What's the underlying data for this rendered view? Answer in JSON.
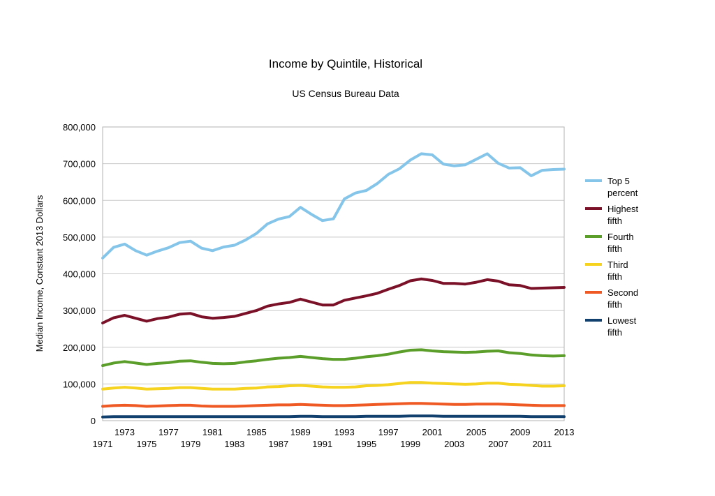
{
  "chart_data": {
    "type": "line",
    "title": "Income by Quintile, Historical",
    "subtitle": "US Census Bureau Data",
    "xlabel": "",
    "ylabel": "Median Income, Constant 2013 Dollars",
    "ylim": [
      0,
      800000
    ],
    "yticks": [
      0,
      100000,
      200000,
      300000,
      400000,
      500000,
      600000,
      700000,
      800000
    ],
    "ytick_labels": [
      "0",
      "100,000",
      "200,000",
      "300,000",
      "400,000",
      "500,000",
      "600,000",
      "700,000",
      "800,000"
    ],
    "xlim": [
      1971,
      2013
    ],
    "xticks_lower": [
      "1971",
      "1975",
      "1979",
      "1983",
      "1987",
      "1991",
      "1995",
      "1999",
      "2003",
      "2007",
      "2011"
    ],
    "xticks_upper": [
      "1973",
      "1977",
      "1981",
      "1985",
      "1989",
      "1993",
      "1997",
      "2001",
      "2005",
      "2009",
      "2013"
    ],
    "grid": "horizontal",
    "legend_position": "right",
    "x": [
      1971,
      1972,
      1973,
      1974,
      1975,
      1976,
      1977,
      1978,
      1979,
      1980,
      1981,
      1982,
      1983,
      1984,
      1985,
      1986,
      1987,
      1988,
      1989,
      1990,
      1991,
      1992,
      1993,
      1994,
      1995,
      1996,
      1997,
      1998,
      1999,
      2000,
      2001,
      2002,
      2003,
      2004,
      2005,
      2006,
      2007,
      2008,
      2009,
      2010,
      2011,
      2012,
      2013
    ],
    "series": [
      {
        "name": "Top 5 percent",
        "color": "#85c5ea",
        "values": [
          443000,
          472000,
          481000,
          463000,
          451000,
          462000,
          471000,
          485000,
          489000,
          470000,
          463000,
          473000,
          478000,
          492000,
          510000,
          536000,
          549000,
          556000,
          581000,
          562000,
          545000,
          550000,
          604000,
          620000,
          627000,
          646000,
          671000,
          686000,
          710000,
          727000,
          724000,
          699000,
          694000,
          697000,
          712000,
          727000,
          701000,
          688000,
          689000,
          667000,
          682000,
          684000,
          685000
        ]
      },
      {
        "name": "Highest fifth",
        "color": "#7a1128",
        "values": [
          266000,
          280000,
          287000,
          279000,
          271000,
          278000,
          282000,
          290000,
          292000,
          283000,
          279000,
          281000,
          284000,
          292000,
          300000,
          312000,
          318000,
          322000,
          331000,
          323000,
          315000,
          315000,
          328000,
          334000,
          340000,
          347000,
          358000,
          368000,
          381000,
          386000,
          382000,
          374000,
          374000,
          372000,
          377000,
          384000,
          380000,
          370000,
          368000,
          360000,
          361000,
          362000,
          363000
        ]
      },
      {
        "name": "Fourth fifth",
        "color": "#5c9e2a",
        "values": [
          150000,
          157000,
          161000,
          157000,
          153000,
          156000,
          158000,
          162000,
          163000,
          159000,
          156000,
          155000,
          156000,
          160000,
          163000,
          167000,
          170000,
          172000,
          175000,
          172000,
          169000,
          167000,
          167000,
          170000,
          174000,
          177000,
          181000,
          187000,
          192000,
          193000,
          190000,
          188000,
          187000,
          186000,
          187000,
          189000,
          190000,
          185000,
          183000,
          179000,
          177000,
          176000,
          177000
        ]
      },
      {
        "name": "Third fifth",
        "color": "#f5d31e",
        "values": [
          86000,
          89000,
          91000,
          89000,
          86000,
          87000,
          88000,
          90000,
          90000,
          88000,
          86000,
          86000,
          86000,
          88000,
          89000,
          92000,
          93000,
          95000,
          96000,
          94000,
          92000,
          91000,
          91000,
          92000,
          95000,
          96000,
          98000,
          101000,
          104000,
          104000,
          102000,
          101000,
          100000,
          99000,
          100000,
          102000,
          102000,
          99000,
          98000,
          96000,
          94000,
          94000,
          95000
        ]
      },
      {
        "name": "Second fifth",
        "color": "#ef5a24",
        "values": [
          39000,
          41000,
          42000,
          41000,
          39000,
          40000,
          41000,
          42000,
          42000,
          40000,
          39000,
          39000,
          39000,
          40000,
          41000,
          42000,
          43000,
          43000,
          44000,
          43000,
          42000,
          41000,
          41000,
          42000,
          43000,
          44000,
          45000,
          46000,
          47000,
          47000,
          46000,
          45000,
          44000,
          44000,
          45000,
          45000,
          45000,
          44000,
          43000,
          42000,
          41000,
          41000,
          41000
        ]
      },
      {
        "name": "Lowest fifth",
        "color": "#12406e",
        "values": [
          10000,
          11000,
          11000,
          11000,
          11000,
          11000,
          11000,
          11000,
          11000,
          11000,
          11000,
          11000,
          11000,
          11000,
          11000,
          11000,
          11000,
          11000,
          12000,
          12000,
          11000,
          11000,
          11000,
          11000,
          12000,
          12000,
          12000,
          12000,
          13000,
          13000,
          13000,
          12000,
          12000,
          12000,
          12000,
          12000,
          12000,
          12000,
          12000,
          11000,
          11000,
          11000,
          11000
        ]
      }
    ],
    "legend_labels": [
      [
        "Top 5",
        "percent"
      ],
      [
        "Highest",
        "fifth"
      ],
      [
        "Fourth",
        "fifth"
      ],
      [
        "Third",
        "fifth"
      ],
      [
        "Second",
        "fifth"
      ],
      [
        "Lowest",
        "fifth"
      ]
    ]
  }
}
